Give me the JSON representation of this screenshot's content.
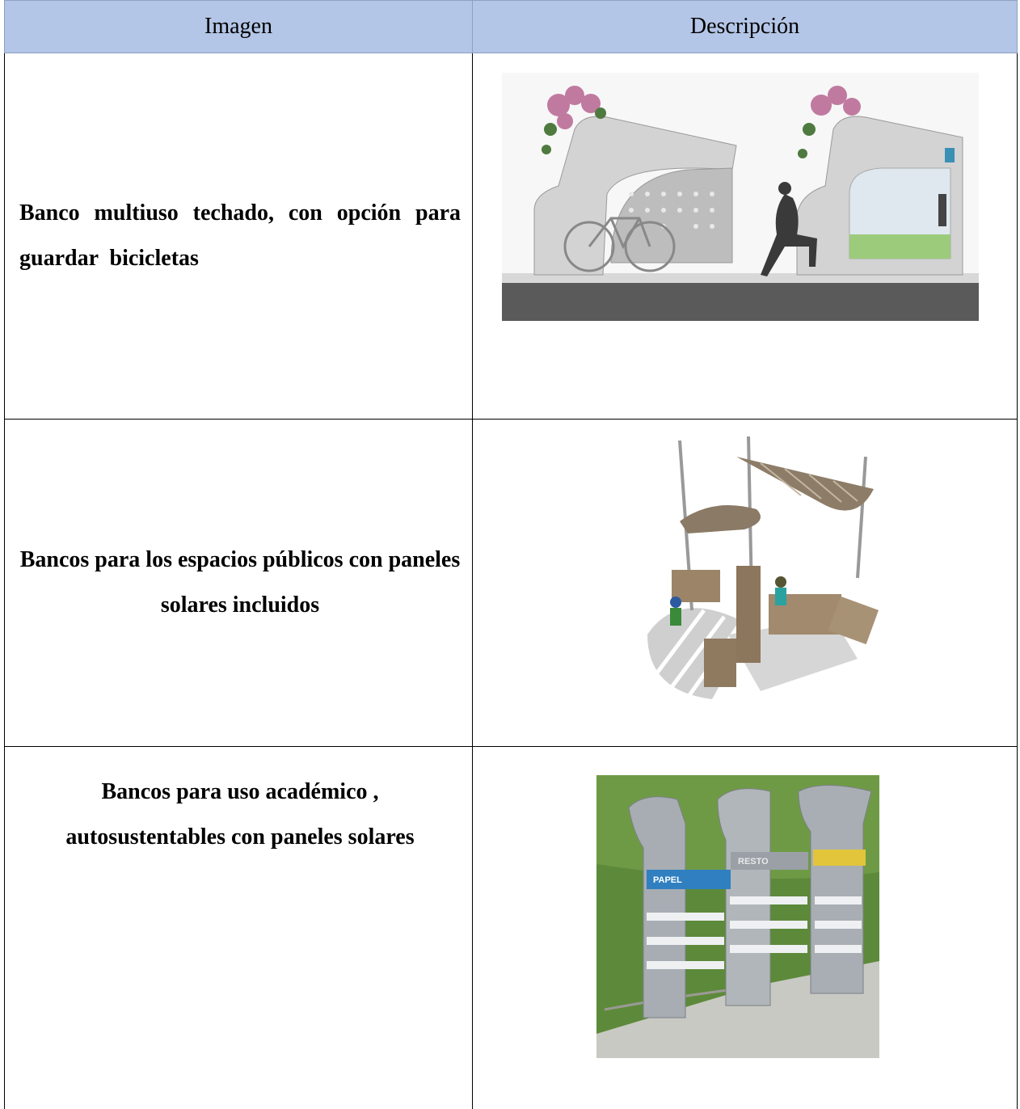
{
  "table": {
    "header": [
      "Imagen",
      "Descripción"
    ],
    "rows": [
      {
        "text": "Banco multiuso techado, con opción para guardar  bicicletas"
      },
      {
        "text": "Bancos para los espacios públicos con paneles solares incluidos"
      },
      {
        "text": "Bancos para uso académico , autosustentables con paneles solares",
        "image_labels": [
          "PAPEL",
          "RESTO"
        ]
      }
    ]
  }
}
